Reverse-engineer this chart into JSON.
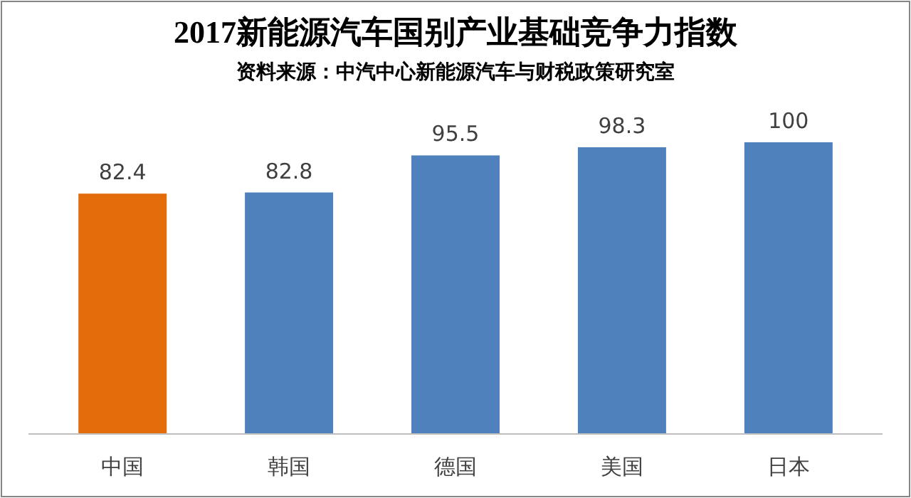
{
  "chart_data": {
    "type": "bar",
    "title": "2017新能源汽车国别产业基础竞争力指数",
    "subtitle": "资料来源：中汽中心新能源汽车与财税政策研究室",
    "categories": [
      "中国",
      "韩国",
      "德国",
      "美国",
      "日本"
    ],
    "values": [
      82.4,
      82.8,
      95.5,
      98.3,
      100
    ],
    "colors": [
      "#e46c0a",
      "#4f81bd",
      "#4f81bd",
      "#4f81bd",
      "#4f81bd"
    ],
    "data_labels": true,
    "tick_labels": "x"
  }
}
